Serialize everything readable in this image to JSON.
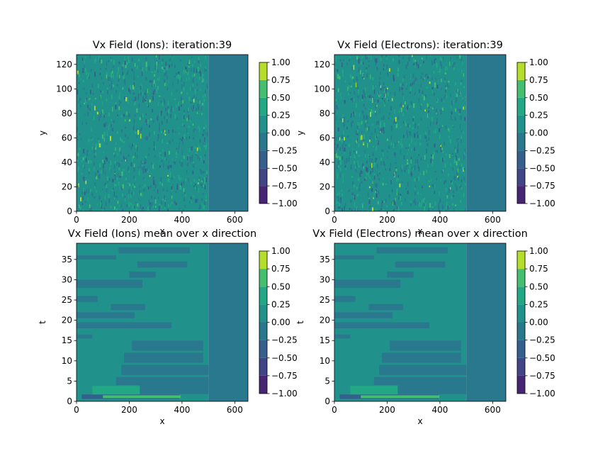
{
  "colorbar": {
    "ticks": [
      -1.0,
      -0.75,
      -0.5,
      -0.25,
      0.0,
      0.25,
      0.5,
      0.75,
      1.0
    ],
    "tick_labels": [
      "−1.00",
      "−0.75",
      "−0.50",
      "−0.25",
      "0.00",
      "0.25",
      "0.50",
      "0.75",
      "1.00"
    ],
    "levels": [
      {
        "range": [
          -1.0,
          -0.75
        ],
        "color": "#482475"
      },
      {
        "range": [
          -0.75,
          -0.5
        ],
        "color": "#414487"
      },
      {
        "range": [
          -0.5,
          -0.25
        ],
        "color": "#355f8d"
      },
      {
        "range": [
          -0.25,
          0.0
        ],
        "color": "#2a788e"
      },
      {
        "range": [
          0.0,
          0.25
        ],
        "color": "#21918c"
      },
      {
        "range": [
          0.25,
          0.5
        ],
        "color": "#22a884"
      },
      {
        "range": [
          0.5,
          0.75
        ],
        "color": "#44bf70"
      },
      {
        "range": [
          0.75,
          1.0
        ],
        "color": "#b5de2b"
      }
    ],
    "cap_colors": {
      "low": "#440154",
      "high": "#fde725"
    }
  },
  "chart_data": [
    {
      "type": "heatmap",
      "panel": "ions-field",
      "title": "Vx Field (Ions): iteration:39",
      "xlabel": "x",
      "ylabel": "y",
      "xlim": [
        0,
        650
      ],
      "ylim": [
        0,
        128
      ],
      "xticks": [
        0,
        200,
        400,
        600
      ],
      "yticks": [
        0,
        20,
        40,
        60,
        80,
        100,
        120
      ],
      "background_level": 0.1,
      "boundary_x": 500,
      "right_region_level": -0.1,
      "speckle": true,
      "bands": []
    },
    {
      "type": "heatmap",
      "panel": "electrons-field",
      "title": "Vx Field (Electrons): iteration:39",
      "xlabel": "x",
      "ylabel": "y",
      "xlim": [
        0,
        650
      ],
      "ylim": [
        0,
        128
      ],
      "xticks": [
        0,
        200,
        400,
        600
      ],
      "yticks": [
        0,
        20,
        40,
        60,
        80,
        100,
        120
      ],
      "background_level": 0.1,
      "boundary_x": 500,
      "right_region_level": -0.1,
      "speckle": true,
      "bands": []
    },
    {
      "type": "heatmap",
      "panel": "ions-mean",
      "title": "Vx Field (Ions) mean over x direction",
      "xlabel": "x",
      "ylabel": "t",
      "xlim": [
        0,
        650
      ],
      "ylim": [
        0,
        39
      ],
      "xticks": [
        0,
        200,
        400,
        600
      ],
      "yticks": [
        0,
        5,
        10,
        15,
        20,
        25,
        30,
        35
      ],
      "background_level": 0.1,
      "boundary_x": 500,
      "right_region_level": -0.1,
      "speckle": false,
      "bands": [
        {
          "x": [
            0,
            500
          ],
          "t": [
            0,
            0.8
          ],
          "level": 0.1
        },
        {
          "x": [
            20,
            390
          ],
          "t": [
            0.6,
            1.7
          ],
          "level": -0.4
        },
        {
          "x": [
            100,
            395
          ],
          "t": [
            0.8,
            1.5
          ],
          "level": 0.6
        },
        {
          "x": [
            60,
            240
          ],
          "t": [
            1.7,
            3.8
          ],
          "level": 0.35
        },
        {
          "x": [
            240,
            500
          ],
          "t": [
            1.8,
            4.0
          ],
          "level": -0.1
        },
        {
          "x": [
            150,
            500
          ],
          "t": [
            4.0,
            6.0
          ],
          "level": -0.1
        },
        {
          "x": [
            170,
            500
          ],
          "t": [
            6.5,
            9.0
          ],
          "level": -0.1
        },
        {
          "x": [
            180,
            480
          ],
          "t": [
            9.5,
            12.0
          ],
          "level": -0.1
        },
        {
          "x": [
            210,
            480
          ],
          "t": [
            12.5,
            15.0
          ],
          "level": -0.1
        },
        {
          "x": [
            0,
            60
          ],
          "t": [
            15.5,
            16.5
          ],
          "level": -0.1
        },
        {
          "x": [
            0,
            360
          ],
          "t": [
            18.0,
            19.5
          ],
          "level": -0.1
        },
        {
          "x": [
            0,
            220
          ],
          "t": [
            20.5,
            22.0
          ],
          "level": -0.1
        },
        {
          "x": [
            130,
            260
          ],
          "t": [
            22.5,
            24.0
          ],
          "level": -0.1
        },
        {
          "x": [
            0,
            80
          ],
          "t": [
            24.5,
            26.0
          ],
          "level": -0.1
        },
        {
          "x": [
            0,
            250
          ],
          "t": [
            28.0,
            30.0
          ],
          "level": -0.1
        },
        {
          "x": [
            200,
            300
          ],
          "t": [
            30.5,
            32.0
          ],
          "level": -0.1
        },
        {
          "x": [
            230,
            420
          ],
          "t": [
            33.0,
            34.5
          ],
          "level": -0.1
        },
        {
          "x": [
            0,
            150
          ],
          "t": [
            35.0,
            36.0
          ],
          "level": -0.1
        },
        {
          "x": [
            160,
            430
          ],
          "t": [
            36.5,
            38.0
          ],
          "level": -0.1
        }
      ]
    },
    {
      "type": "heatmap",
      "panel": "electrons-mean",
      "title": "Vx Field (Electrons) mean over x direction",
      "xlabel": "x",
      "ylabel": "t",
      "xlim": [
        0,
        650
      ],
      "ylim": [
        0,
        39
      ],
      "xticks": [
        0,
        200,
        400,
        600
      ],
      "yticks": [
        0,
        5,
        10,
        15,
        20,
        25,
        30,
        35
      ],
      "background_level": 0.1,
      "boundary_x": 500,
      "right_region_level": -0.1,
      "speckle": false,
      "bands": [
        {
          "x": [
            0,
            500
          ],
          "t": [
            0,
            0.8
          ],
          "level": 0.1
        },
        {
          "x": [
            20,
            395
          ],
          "t": [
            0.6,
            1.7
          ],
          "level": -0.4
        },
        {
          "x": [
            100,
            398
          ],
          "t": [
            0.8,
            1.5
          ],
          "level": 0.6
        },
        {
          "x": [
            60,
            240
          ],
          "t": [
            1.7,
            3.8
          ],
          "level": 0.35
        },
        {
          "x": [
            240,
            500
          ],
          "t": [
            1.8,
            4.0
          ],
          "level": -0.1
        },
        {
          "x": [
            150,
            500
          ],
          "t": [
            4.0,
            6.0
          ],
          "level": -0.1
        },
        {
          "x": [
            170,
            500
          ],
          "t": [
            6.5,
            9.0
          ],
          "level": -0.1
        },
        {
          "x": [
            180,
            480
          ],
          "t": [
            9.5,
            12.0
          ],
          "level": -0.1
        },
        {
          "x": [
            210,
            480
          ],
          "t": [
            12.5,
            15.0
          ],
          "level": -0.1
        },
        {
          "x": [
            0,
            60
          ],
          "t": [
            15.5,
            16.5
          ],
          "level": -0.1
        },
        {
          "x": [
            0,
            360
          ],
          "t": [
            18.0,
            19.5
          ],
          "level": -0.1
        },
        {
          "x": [
            0,
            220
          ],
          "t": [
            20.5,
            22.0
          ],
          "level": -0.1
        },
        {
          "x": [
            130,
            260
          ],
          "t": [
            22.5,
            24.0
          ],
          "level": -0.1
        },
        {
          "x": [
            0,
            80
          ],
          "t": [
            24.5,
            26.0
          ],
          "level": -0.1
        },
        {
          "x": [
            0,
            250
          ],
          "t": [
            28.0,
            30.0
          ],
          "level": -0.1
        },
        {
          "x": [
            200,
            300
          ],
          "t": [
            30.5,
            32.0
          ],
          "level": -0.1
        },
        {
          "x": [
            230,
            420
          ],
          "t": [
            33.0,
            34.5
          ],
          "level": -0.1
        },
        {
          "x": [
            0,
            150
          ],
          "t": [
            35.0,
            36.0
          ],
          "level": -0.1
        },
        {
          "x": [
            160,
            430
          ],
          "t": [
            36.5,
            38.0
          ],
          "level": -0.1
        }
      ]
    }
  ]
}
